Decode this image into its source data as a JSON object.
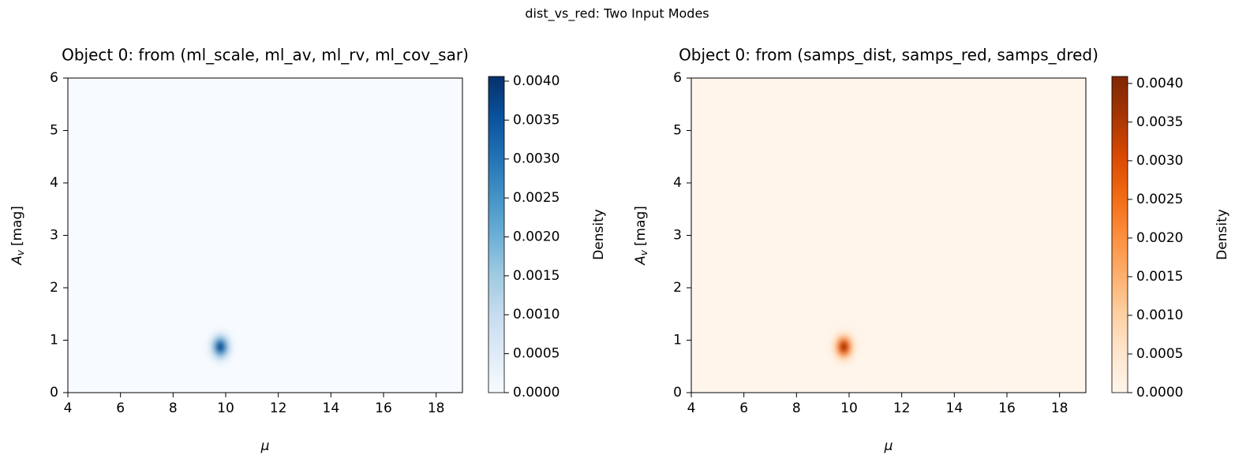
{
  "suptitle": "dist_vs_red: Two Input Modes",
  "chart_data": [
    {
      "type": "heatmap",
      "title": "Object 0: from (ml_scale, ml_av, ml_rv, ml_cov_sar)",
      "xlabel": "μ",
      "ylabel": {
        "symbol": "A",
        "subscript": "v",
        "unit": "[mag]"
      },
      "colorbar_label": "Density",
      "colors": [
        "#f7fbff",
        "#deebf7",
        "#c6dbef",
        "#9ecae1",
        "#6baed6",
        "#4292c6",
        "#2171b5",
        "#08519c",
        "#08306b"
      ],
      "xlim": [
        4,
        19
      ],
      "xticks": [
        4,
        6,
        8,
        10,
        12,
        14,
        16,
        18
      ],
      "ylim": [
        0,
        6
      ],
      "yticks": [
        0,
        1,
        2,
        3,
        4,
        5,
        6
      ],
      "clim": [
        0,
        0.00406
      ],
      "cticks": [
        {
          "value": 0,
          "label": "0.0000"
        },
        {
          "value": 0.0005,
          "label": "0.0005"
        },
        {
          "value": 0.001,
          "label": "0.0010"
        },
        {
          "value": 0.0015,
          "label": "0.0015"
        },
        {
          "value": 0.002,
          "label": "0.0020"
        },
        {
          "value": 0.0025,
          "label": "0.0025"
        },
        {
          "value": 0.003,
          "label": "0.0030"
        },
        {
          "value": 0.0035,
          "label": "0.0035"
        },
        {
          "value": 0.004,
          "label": "0.0040"
        }
      ],
      "x": [
        9.2,
        9.3,
        9.4,
        9.5,
        9.6,
        9.7,
        9.8,
        9.9,
        10.0,
        10.1,
        10.2,
        10.3,
        10.4
      ],
      "y": [
        0.48,
        0.56,
        0.64,
        0.72,
        0.8,
        0.88,
        0.96,
        1.04,
        1.12,
        1.2,
        1.28
      ],
      "values": [
        [
          0,
          0,
          0,
          1e-05,
          2e-05,
          3e-05,
          4e-05,
          3e-05,
          2e-05,
          1e-05,
          0,
          0,
          0
        ],
        [
          0,
          1e-05,
          3e-05,
          6e-05,
          0.00012,
          0.00017,
          0.00019,
          0.00017,
          0.00012,
          6e-05,
          3e-05,
          1e-05,
          0
        ],
        [
          1e-05,
          3e-05,
          0.0001,
          0.00024,
          0.00044,
          0.00064,
          0.00073,
          0.00064,
          0.00044,
          0.00024,
          0.0001,
          3e-05,
          1e-05
        ],
        [
          2e-05,
          8e-05,
          0.00025,
          0.00061,
          0.00114,
          0.00166,
          0.00188,
          0.00166,
          0.00114,
          0.00061,
          0.00025,
          8e-05,
          2e-05
        ],
        [
          4e-05,
          0.00015,
          0.00045,
          0.00107,
          0.00201,
          0.00292,
          0.00331,
          0.00292,
          0.00201,
          0.00107,
          0.00045,
          0.00015,
          4e-05
        ],
        [
          4e-05,
          0.00018,
          0.00054,
          0.0013,
          0.00243,
          0.00353,
          0.004,
          0.00353,
          0.00243,
          0.0013,
          0.00054,
          0.00018,
          4e-05
        ],
        [
          4e-05,
          0.00015,
          0.00045,
          0.00107,
          0.00201,
          0.00292,
          0.00331,
          0.00292,
          0.00201,
          0.00107,
          0.00045,
          0.00015,
          4e-05
        ],
        [
          2e-05,
          8e-05,
          0.00025,
          0.00061,
          0.00114,
          0.00166,
          0.00188,
          0.00166,
          0.00114,
          0.00061,
          0.00025,
          8e-05,
          2e-05
        ],
        [
          1e-05,
          3e-05,
          0.0001,
          0.00024,
          0.00044,
          0.00064,
          0.00073,
          0.00064,
          0.00044,
          0.00024,
          0.0001,
          3e-05,
          1e-05
        ],
        [
          0,
          1e-05,
          3e-05,
          6e-05,
          0.00012,
          0.00017,
          0.00019,
          0.00017,
          0.00012,
          6e-05,
          3e-05,
          1e-05,
          0
        ],
        [
          0,
          0,
          0,
          1e-05,
          2e-05,
          3e-05,
          4e-05,
          3e-05,
          2e-05,
          1e-05,
          0,
          0,
          0
        ]
      ]
    },
    {
      "type": "heatmap",
      "title": "Object 0: from (samps_dist, samps_red, samps_dred)",
      "xlabel": "μ",
      "ylabel": {
        "symbol": "A",
        "subscript": "v",
        "unit": "[mag]"
      },
      "colorbar_label": "Density",
      "colors": [
        "#fff5eb",
        "#fee6ce",
        "#fdd0a2",
        "#fdae6b",
        "#fd8d3c",
        "#f16913",
        "#d94801",
        "#a63603",
        "#7f2704"
      ],
      "xlim": [
        4,
        19
      ],
      "xticks": [
        4,
        6,
        8,
        10,
        12,
        14,
        16,
        18
      ],
      "ylim": [
        0,
        6
      ],
      "yticks": [
        0,
        1,
        2,
        3,
        4,
        5,
        6
      ],
      "clim": [
        0,
        0.00409
      ],
      "cticks": [
        {
          "value": 0,
          "label": "0.0000"
        },
        {
          "value": 0.0005,
          "label": "0.0005"
        },
        {
          "value": 0.001,
          "label": "0.0010"
        },
        {
          "value": 0.0015,
          "label": "0.0015"
        },
        {
          "value": 0.002,
          "label": "0.0020"
        },
        {
          "value": 0.0025,
          "label": "0.0025"
        },
        {
          "value": 0.003,
          "label": "0.0030"
        },
        {
          "value": 0.0035,
          "label": "0.0035"
        },
        {
          "value": 0.004,
          "label": "0.0040"
        }
      ],
      "x": [
        9.2,
        9.3,
        9.4,
        9.5,
        9.6,
        9.7,
        9.8,
        9.9,
        10.0,
        10.1,
        10.2,
        10.3,
        10.4
      ],
      "y": [
        0.48,
        0.56,
        0.64,
        0.72,
        0.8,
        0.88,
        0.96,
        1.04,
        1.12,
        1.2,
        1.28
      ],
      "values": [
        [
          0,
          0,
          0,
          1e-05,
          2e-05,
          3e-05,
          4e-05,
          3e-05,
          2e-05,
          1e-05,
          0,
          0,
          0
        ],
        [
          0,
          1e-05,
          3e-05,
          6e-05,
          0.00012,
          0.00017,
          0.00019,
          0.00017,
          0.00012,
          6e-05,
          3e-05,
          1e-05,
          0
        ],
        [
          1e-05,
          3e-05,
          0.0001,
          0.00024,
          0.00044,
          0.00064,
          0.00073,
          0.00064,
          0.00044,
          0.00024,
          0.0001,
          3e-05,
          1e-05
        ],
        [
          2e-05,
          8e-05,
          0.00025,
          0.00061,
          0.00114,
          0.00166,
          0.00188,
          0.00166,
          0.00114,
          0.00061,
          0.00025,
          8e-05,
          2e-05
        ],
        [
          4e-05,
          0.00015,
          0.00045,
          0.00107,
          0.00201,
          0.00292,
          0.00331,
          0.00292,
          0.00201,
          0.00107,
          0.00045,
          0.00015,
          4e-05
        ],
        [
          4e-05,
          0.00018,
          0.00054,
          0.0013,
          0.00243,
          0.00353,
          0.004,
          0.00353,
          0.00243,
          0.0013,
          0.00054,
          0.00018,
          4e-05
        ],
        [
          4e-05,
          0.00015,
          0.00045,
          0.00107,
          0.00201,
          0.00292,
          0.00331,
          0.00292,
          0.00201,
          0.00107,
          0.00045,
          0.00015,
          4e-05
        ],
        [
          2e-05,
          8e-05,
          0.00025,
          0.00061,
          0.00114,
          0.00166,
          0.00188,
          0.00166,
          0.00114,
          0.00061,
          0.00025,
          8e-05,
          2e-05
        ],
        [
          1e-05,
          3e-05,
          0.0001,
          0.00024,
          0.00044,
          0.00064,
          0.00073,
          0.00064,
          0.00044,
          0.00024,
          0.0001,
          3e-05,
          1e-05
        ],
        [
          0,
          1e-05,
          3e-05,
          6e-05,
          0.00012,
          0.00017,
          0.00019,
          0.00017,
          0.00012,
          6e-05,
          3e-05,
          1e-05,
          0
        ],
        [
          0,
          0,
          0,
          1e-05,
          2e-05,
          3e-05,
          4e-05,
          3e-05,
          2e-05,
          1e-05,
          0,
          0,
          0
        ]
      ]
    }
  ]
}
